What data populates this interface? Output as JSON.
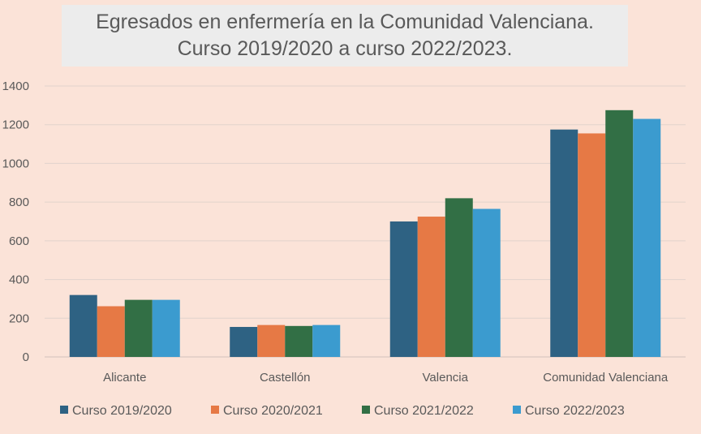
{
  "chart_data": {
    "type": "bar",
    "title_line1": "Egresados en enfermería en la Comunidad Valenciana.",
    "title_line2": "Curso 2019/2020  a curso 2022/2023.",
    "categories": [
      "Alicante",
      "Castellón",
      "Valencia",
      "Comunidad Valenciana"
    ],
    "series": [
      {
        "name": "Curso 2019/2020",
        "color": "#2e6283",
        "values": [
          320,
          155,
          700,
          1175
        ]
      },
      {
        "name": "Curso 2020/2021",
        "color": "#e67945",
        "values": [
          262,
          165,
          725,
          1155
        ]
      },
      {
        "name": "Curso 2021/2022",
        "color": "#326f45",
        "values": [
          295,
          160,
          820,
          1275
        ]
      },
      {
        "name": "Curso 2022/2023",
        "color": "#3b9bcf",
        "values": [
          295,
          165,
          765,
          1230
        ]
      }
    ],
    "ylim": [
      0,
      1400
    ],
    "yticks": [
      0,
      200,
      400,
      600,
      800,
      1000,
      1200,
      1400
    ],
    "grid": true,
    "legend_position": "bottom"
  }
}
